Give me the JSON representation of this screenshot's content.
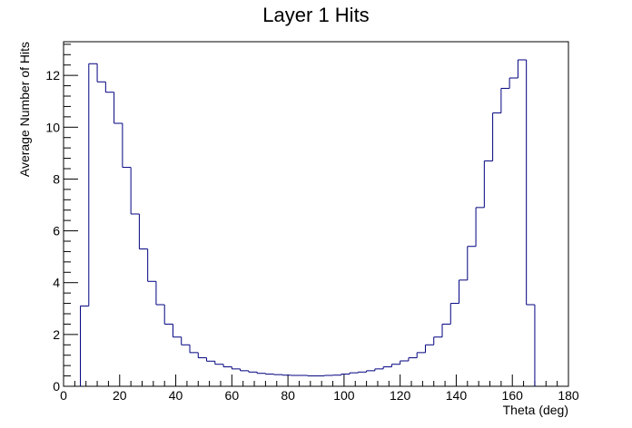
{
  "chart_data": {
    "type": "histogram",
    "title": "Layer 1 Hits",
    "xlabel": "Theta (deg)",
    "ylabel": "Average Number of Hits",
    "xlim": [
      0,
      180
    ],
    "ylim": [
      0,
      13.3
    ],
    "bin_width": 3,
    "bin_start": 6,
    "line_color": "#000080",
    "grid": false,
    "legend": "none",
    "x_ticks": [
      0,
      20,
      40,
      60,
      80,
      100,
      120,
      140,
      160,
      180
    ],
    "y_ticks": [
      0,
      2,
      4,
      6,
      8,
      10,
      12
    ],
    "values": [
      3.1,
      12.45,
      11.75,
      11.35,
      10.15,
      8.45,
      6.65,
      5.3,
      4.05,
      3.15,
      2.4,
      1.9,
      1.6,
      1.3,
      1.1,
      0.97,
      0.85,
      0.75,
      0.67,
      0.6,
      0.55,
      0.5,
      0.47,
      0.45,
      0.43,
      0.42,
      0.42,
      0.4,
      0.4,
      0.42,
      0.43,
      0.47,
      0.52,
      0.55,
      0.6,
      0.67,
      0.75,
      0.85,
      0.98,
      1.1,
      1.3,
      1.6,
      1.9,
      2.4,
      3.2,
      4.1,
      5.4,
      6.9,
      8.7,
      10.55,
      11.5,
      11.9,
      12.6,
      3.15
    ]
  }
}
